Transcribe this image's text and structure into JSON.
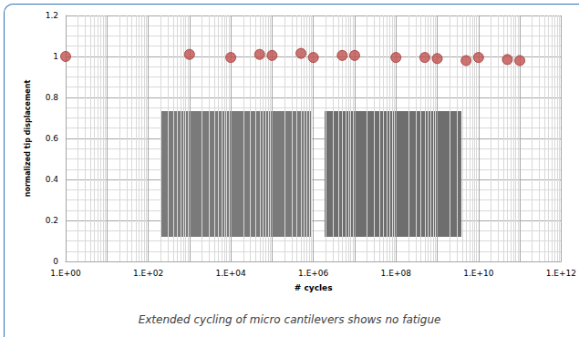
{
  "chart_data": {
    "type": "scatter",
    "caption": "Extended cycling of micro cantilevers shows no fatigue",
    "x_label": "# cycles",
    "y_label": "normalized tip displacement",
    "x": [
      1,
      1000,
      10000,
      50000,
      100000,
      500000,
      1000000,
      5000000,
      10000000,
      100000000,
      500000000,
      1000000000,
      5000000000,
      10000000000,
      50000000000,
      100000000000
    ],
    "values": [
      1,
      1.01,
      0.995,
      1.01,
      1.005,
      1.015,
      0.995,
      1.005,
      1.005,
      0.995,
      0.995,
      0.99,
      0.98,
      0.995,
      0.985,
      0.98
    ],
    "color": "#c0504d",
    "marker": "circle",
    "log": "x",
    "grid": true,
    "xlim": [
      1,
      1000000000000
    ],
    "xticks": [
      {
        "value": 1,
        "label": "1.E+00"
      },
      {
        "value": 100,
        "label": "1.E+02"
      },
      {
        "value": 10000,
        "label": "1.E+04"
      },
      {
        "value": 1000000,
        "label": "1.E+06"
      },
      {
        "value": 100000000,
        "label": "1.E+08"
      },
      {
        "value": 10000000000,
        "label": "1.E+10"
      },
      {
        "value": 1000000000000,
        "label": "1.E+12"
      }
    ],
    "ylim": [
      0,
      1.2
    ],
    "yticks": [
      0,
      0.2,
      0.4,
      0.6,
      0.8,
      1,
      1.2
    ]
  }
}
